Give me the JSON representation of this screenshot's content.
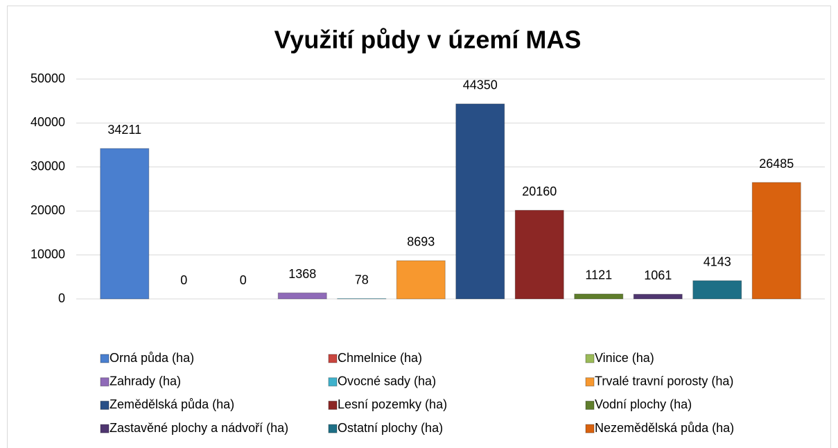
{
  "chart_data": {
    "type": "bar",
    "title": "Využití půdy v území MAS",
    "categories": [
      null
    ],
    "series": [
      {
        "name": "Orná půda (ha)",
        "color": "#4a7fcf",
        "values": [
          34211
        ]
      },
      {
        "name": "Chmelnice (ha)",
        "color": "#c9463f",
        "values": [
          0
        ]
      },
      {
        "name": "Vinice (ha)",
        "color": "#9bbb59",
        "values": [
          0
        ]
      },
      {
        "name": "Zahrady (ha)",
        "color": "#8f6ab8",
        "values": [
          1368
        ]
      },
      {
        "name": "Ovocné sady (ha)",
        "color": "#3fb2cc",
        "values": [
          78
        ]
      },
      {
        "name": "Trvalé travní porosty (ha)",
        "color": "#f7982f",
        "values": [
          8693
        ]
      },
      {
        "name": "Zemědělská půda (ha)",
        "color": "#284f86",
        "values": [
          44350
        ]
      },
      {
        "name": "Lesní pozemky (ha)",
        "color": "#8c2725",
        "values": [
          20160
        ]
      },
      {
        "name": "Vodní plochy (ha)",
        "color": "#5f7d2c",
        "values": [
          1121
        ]
      },
      {
        "name": "Zastavěné plochy a nádvoří (ha)",
        "color": "#4f3670",
        "values": [
          1061
        ]
      },
      {
        "name": "Ostatní plochy (ha)",
        "color": "#1e6f86",
        "values": [
          4143
        ]
      },
      {
        "name": "Nezemědělská půda (ha)",
        "color": "#d9620f",
        "values": [
          26485
        ]
      }
    ],
    "ylim": [
      0,
      50000
    ],
    "yticks": [
      0,
      10000,
      20000,
      30000,
      40000,
      50000
    ],
    "grid": true,
    "legend": "bottom"
  }
}
